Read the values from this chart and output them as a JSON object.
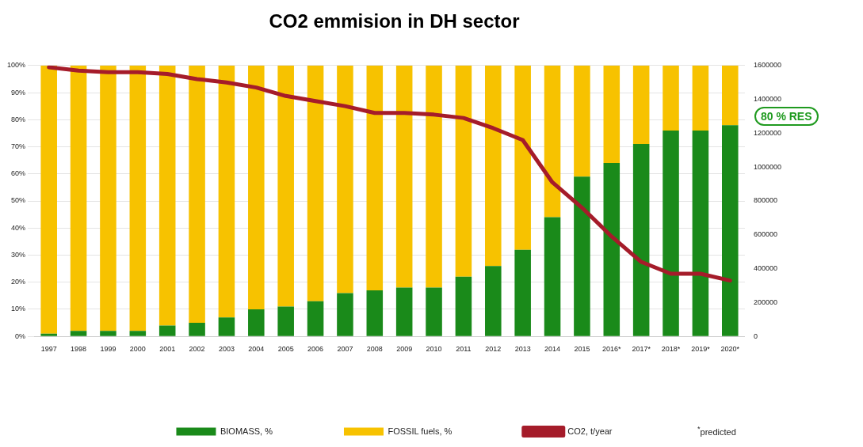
{
  "chart_data": {
    "type": "bar",
    "title": "CO2 emmision in DH sector",
    "categories": [
      "1997",
      "1998",
      "1999",
      "2000",
      "2001",
      "2002",
      "2003",
      "2004",
      "2005",
      "2006",
      "2007",
      "2008",
      "2009",
      "2010",
      "2011",
      "2012",
      "2013",
      "2014",
      "2015",
      "2016*",
      "2017*",
      "2018*",
      "2019*",
      "2020*"
    ],
    "stacked": true,
    "series": [
      {
        "name": "BIOMASS, %",
        "color": "#1a8a1a",
        "values": [
          1,
          2,
          2,
          2,
          4,
          5,
          7,
          10,
          11,
          13,
          16,
          17,
          18,
          18,
          22,
          26,
          32,
          44,
          59,
          64,
          71,
          76,
          76,
          78
        ]
      },
      {
        "name": "FOSSIL fuels, %",
        "color": "#f7c200",
        "values": [
          99,
          98,
          98,
          98,
          96,
          95,
          93,
          90,
          89,
          87,
          84,
          83,
          82,
          82,
          78,
          74,
          68,
          56,
          41,
          36,
          29,
          24,
          24,
          22
        ]
      },
      {
        "name": "CO2, t/year",
        "color": "#a51c2a",
        "type": "line",
        "axis": "y2",
        "marker": "none",
        "values": [
          1590000,
          1570000,
          1560000,
          1560000,
          1550000,
          1520000,
          1500000,
          1470000,
          1420000,
          1390000,
          1360000,
          1320000,
          1320000,
          1310000,
          1290000,
          1230000,
          1160000,
          910000,
          760000,
          590000,
          440000,
          370000,
          370000,
          330000
        ]
      }
    ],
    "ylim": [
      0,
      100
    ],
    "yticks": [
      {
        "value": 0,
        "label": "0%"
      },
      {
        "value": 10,
        "label": "10%"
      },
      {
        "value": 20,
        "label": "20%"
      },
      {
        "value": 30,
        "label": "30%"
      },
      {
        "value": 40,
        "label": "40%"
      },
      {
        "value": 50,
        "label": "50%"
      },
      {
        "value": 60,
        "label": "60%"
      },
      {
        "value": 70,
        "label": "70%"
      },
      {
        "value": 80,
        "label": "80%"
      },
      {
        "value": 90,
        "label": "90%"
      },
      {
        "value": 100,
        "label": "100%"
      }
    ],
    "y2lim": [
      0,
      1600000
    ],
    "y2ticks": [
      0,
      200000,
      400000,
      600000,
      800000,
      1000000,
      1200000,
      1400000,
      1600000
    ],
    "grid": "y",
    "legend": "bottom",
    "annotations": [
      "80 % RES",
      "$^{*}$predicted"
    ]
  }
}
